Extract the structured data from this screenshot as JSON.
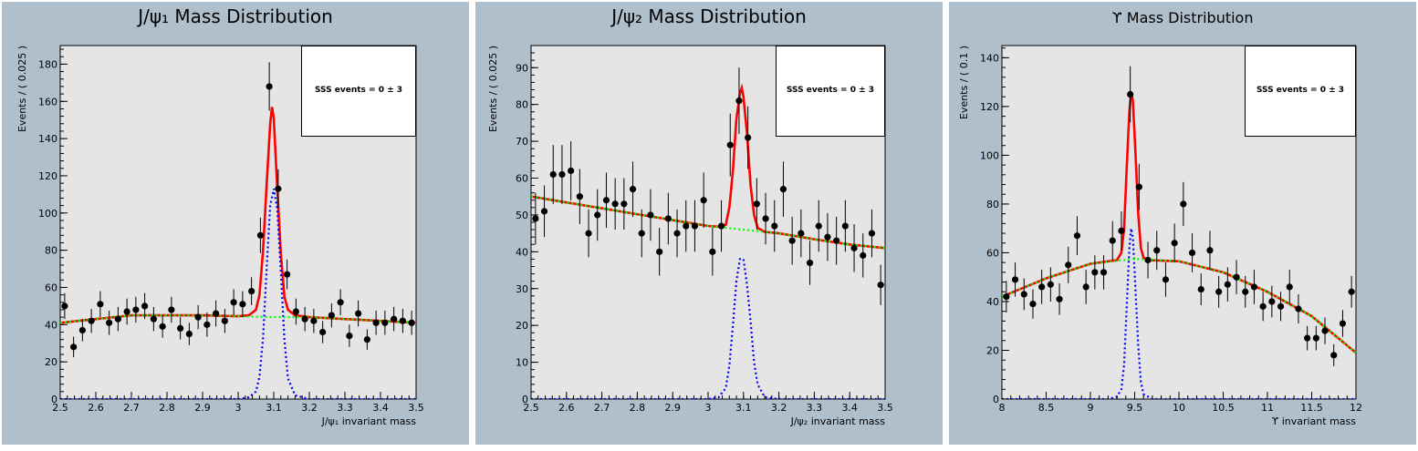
{
  "chart_data": [
    {
      "type": "scatter",
      "title": "J/ψ₁ Mass Distribution",
      "xlabel": "J/ψ₁ invariant mass",
      "ylabel": "Events / ( 0.025 )",
      "xlim": [
        2.5,
        3.5
      ],
      "ylim": [
        0,
        190
      ],
      "xticks": [
        2.5,
        2.6,
        2.7,
        2.8,
        2.9,
        3.0,
        3.1,
        3.2,
        3.3,
        3.4,
        3.5
      ],
      "xtick_labels": [
        "2.5",
        "2.6",
        "2.7",
        "2.8",
        "2.9",
        "3",
        "3.1",
        "3.2",
        "3.3",
        "3.4",
        "3.5"
      ],
      "yticks": [
        0,
        20,
        40,
        60,
        80,
        100,
        120,
        140,
        160,
        180
      ],
      "ytick_labels": [
        "0",
        "20",
        "40",
        "60",
        "80",
        "100",
        "120",
        "140",
        "160",
        "180"
      ],
      "stat_text": "SSS events = 0 ± 3",
      "grid": false,
      "series": [
        {
          "style": "points",
          "x": [
            2.5125,
            2.5375,
            2.5625,
            2.5875,
            2.6125,
            2.6375,
            2.6625,
            2.6875,
            2.7125,
            2.7375,
            2.7625,
            2.7875,
            2.8125,
            2.8375,
            2.8625,
            2.8875,
            2.9125,
            2.9375,
            2.9625,
            2.9875,
            3.0125,
            3.0375,
            3.0625,
            3.0875,
            3.1125,
            3.1375,
            3.1625,
            3.1875,
            3.2125,
            3.2375,
            3.2625,
            3.2875,
            3.3125,
            3.3375,
            3.3625,
            3.3875,
            3.4125,
            3.4375,
            3.4625,
            3.4875
          ],
          "y": [
            50,
            28,
            37,
            42,
            51,
            41,
            43,
            47,
            48,
            50,
            43,
            39,
            48,
            38,
            35,
            44,
            40,
            46,
            42,
            52,
            51,
            58,
            88,
            168,
            113,
            67,
            47,
            43,
            42,
            36,
            45,
            52,
            34,
            46,
            32,
            41,
            41,
            43,
            42,
            41
          ],
          "errors": [
            7,
            5.5,
            6,
            6.5,
            7,
            6.5,
            6.5,
            7,
            7,
            7,
            6.5,
            6,
            7,
            6,
            6,
            6.5,
            6.5,
            7,
            6.5,
            7,
            7,
            7.5,
            9.5,
            13,
            10.5,
            8,
            7,
            6.5,
            6.5,
            6,
            6.5,
            7,
            6,
            7,
            5.5,
            6.5,
            6.5,
            6.5,
            6.5,
            6.5
          ]
        },
        {
          "style": "line",
          "color": "#ff0000",
          "x": [
            2.5,
            2.6,
            2.7,
            2.8,
            2.9,
            3.0,
            3.03,
            3.05,
            3.06,
            3.07,
            3.08,
            3.09,
            3.095,
            3.1,
            3.11,
            3.12,
            3.13,
            3.14,
            3.16,
            3.2,
            3.3,
            3.4,
            3.5
          ],
          "y": [
            41,
            43,
            45,
            45,
            45,
            44.5,
            45,
            48,
            56,
            80,
            115,
            148,
            157,
            151,
            113,
            78,
            55,
            48,
            45,
            44,
            43,
            42,
            41
          ]
        },
        {
          "style": "dotted",
          "color": "#0000ff",
          "x": [
            2.5,
            2.9,
            3.0,
            3.03,
            3.05,
            3.06,
            3.07,
            3.08,
            3.09,
            3.1,
            3.11,
            3.12,
            3.13,
            3.14,
            3.16,
            3.2,
            3.5
          ],
          "y": [
            0,
            0,
            0,
            1,
            4,
            12,
            33,
            70,
            104,
            113,
            102,
            68,
            32,
            11,
            2,
            0,
            0
          ]
        },
        {
          "style": "dotted",
          "color": "#00ff00",
          "x": [
            2.5,
            2.6,
            2.7,
            2.8,
            2.9,
            3.0,
            3.1,
            3.2,
            3.3,
            3.4,
            3.5
          ],
          "y": [
            41,
            43,
            45,
            45,
            45,
            44.5,
            44,
            44,
            43,
            42,
            41
          ]
        }
      ]
    },
    {
      "type": "scatter",
      "title": "J/ψ₂ Mass Distribution",
      "xlabel": "J/ψ₂ invariant mass",
      "ylabel": "Events / ( 0.025 )",
      "xlim": [
        2.5,
        3.5
      ],
      "ylim": [
        0,
        96
      ],
      "xticks": [
        2.5,
        2.6,
        2.7,
        2.8,
        2.9,
        3.0,
        3.1,
        3.2,
        3.3,
        3.4,
        3.5
      ],
      "xtick_labels": [
        "2.5",
        "2.6",
        "2.7",
        "2.8",
        "2.9",
        "3",
        "3.1",
        "3.2",
        "3.3",
        "3.4",
        "3.5"
      ],
      "yticks": [
        0,
        10,
        20,
        30,
        40,
        50,
        60,
        70,
        80,
        90
      ],
      "ytick_labels": [
        "0",
        "10",
        "20",
        "30",
        "40",
        "50",
        "60",
        "70",
        "80",
        "90"
      ],
      "stat_text": "SSS events = 0 ± 3",
      "grid": false,
      "series": [
        {
          "style": "points",
          "x": [
            2.5125,
            2.5375,
            2.5625,
            2.5875,
            2.6125,
            2.6375,
            2.6625,
            2.6875,
            2.7125,
            2.7375,
            2.7625,
            2.7875,
            2.8125,
            2.8375,
            2.8625,
            2.8875,
            2.9125,
            2.9375,
            2.9625,
            2.9875,
            3.0125,
            3.0375,
            3.0625,
            3.0875,
            3.1125,
            3.1375,
            3.1625,
            3.1875,
            3.2125,
            3.2375,
            3.2625,
            3.2875,
            3.3125,
            3.3375,
            3.3625,
            3.3875,
            3.4125,
            3.4375,
            3.4625,
            3.4875
          ],
          "y": [
            49,
            51,
            61,
            61,
            62,
            55,
            45,
            50,
            54,
            53,
            53,
            57,
            45,
            50,
            40,
            49,
            45,
            47,
            47,
            54,
            40,
            47,
            69,
            81,
            71,
            53,
            49,
            47,
            57,
            43,
            45,
            37,
            47,
            44,
            43,
            47,
            41,
            39,
            45,
            31
          ],
          "errors": [
            7,
            7,
            8,
            8,
            8,
            7.5,
            6.5,
            7,
            7.5,
            7,
            7,
            7.5,
            6.5,
            7,
            6.5,
            7,
            6.5,
            7,
            7,
            7.5,
            6.5,
            7,
            8.5,
            9,
            8.5,
            7,
            7,
            7,
            7.5,
            6.5,
            6.5,
            6,
            7,
            6.5,
            6.5,
            7,
            6.5,
            6,
            6.5,
            5.5
          ]
        },
        {
          "style": "line",
          "color": "#ff0000",
          "x": [
            2.5,
            2.6,
            2.7,
            2.8,
            2.9,
            3.0,
            3.03,
            3.05,
            3.06,
            3.07,
            3.08,
            3.09,
            3.095,
            3.1,
            3.11,
            3.12,
            3.13,
            3.14,
            3.16,
            3.2,
            3.3,
            3.4,
            3.5
          ],
          "y": [
            55,
            53.4,
            51.8,
            50.2,
            48.6,
            47,
            46.8,
            47.3,
            52,
            62,
            76,
            83,
            84.5,
            82,
            72,
            58,
            50,
            46.5,
            45.4,
            45,
            43.4,
            42,
            41
          ]
        },
        {
          "style": "dotted",
          "color": "#0000ff",
          "x": [
            2.5,
            2.9,
            3.0,
            3.03,
            3.05,
            3.06,
            3.07,
            3.08,
            3.09,
            3.1,
            3.11,
            3.12,
            3.13,
            3.14,
            3.16,
            3.2,
            3.5
          ],
          "y": [
            0,
            0,
            0,
            0.5,
            3,
            9,
            20,
            32,
            38,
            38,
            31,
            21,
            10,
            4,
            0.5,
            0,
            0
          ]
        },
        {
          "style": "dotted",
          "color": "#00ff00",
          "x": [
            2.5,
            2.6,
            2.7,
            2.8,
            2.9,
            3.0,
            3.1,
            3.2,
            3.3,
            3.4,
            3.5
          ],
          "y": [
            55,
            53.4,
            51.8,
            50.2,
            48.6,
            47,
            46,
            45,
            43.4,
            42,
            41
          ]
        }
      ]
    },
    {
      "type": "scatter",
      "title": "ϒ Mass Distribution",
      "xlabel": "ϒ invariant mass",
      "ylabel": "Events / ( 0.1 )",
      "xlim": [
        8,
        12
      ],
      "ylim": [
        0,
        145
      ],
      "xticks": [
        8,
        8.5,
        9,
        9.5,
        10,
        10.5,
        11,
        11.5,
        12
      ],
      "xtick_labels": [
        "8",
        "8.5",
        "9",
        "9.5",
        "10",
        "10.5",
        "11",
        "11.5",
        "12"
      ],
      "yticks": [
        0,
        20,
        40,
        60,
        80,
        100,
        120,
        140
      ],
      "ytick_labels": [
        "0",
        "20",
        "40",
        "60",
        "80",
        "100",
        "120",
        "140"
      ],
      "stat_text": "SSS events = 0 ± 3",
      "grid": false,
      "series": [
        {
          "style": "points",
          "x": [
            8.05,
            8.15,
            8.25,
            8.35,
            8.45,
            8.55,
            8.65,
            8.75,
            8.85,
            8.95,
            9.05,
            9.15,
            9.25,
            9.35,
            9.45,
            9.55,
            9.65,
            9.75,
            9.85,
            9.95,
            10.05,
            10.15,
            10.25,
            10.35,
            10.45,
            10.55,
            10.65,
            10.75,
            10.85,
            10.95,
            11.05,
            11.15,
            11.25,
            11.35,
            11.45,
            11.55,
            11.65,
            11.75,
            11.85,
            11.95
          ],
          "y": [
            42,
            49,
            43,
            39,
            46,
            47,
            41,
            55,
            67,
            46,
            52,
            52,
            65,
            69,
            125,
            87,
            57,
            61,
            49,
            64,
            80,
            60,
            45,
            61,
            44,
            47,
            50,
            44,
            46,
            38,
            40,
            38,
            46,
            37,
            25,
            25,
            28,
            18,
            31,
            44
          ],
          "errors": [
            6.5,
            7,
            6.5,
            6,
            7,
            7,
            6.5,
            7.5,
            8,
            7,
            7,
            7,
            8,
            8,
            11.5,
            9.5,
            7.5,
            8,
            7,
            8,
            9,
            8,
            6.5,
            8,
            6.5,
            7,
            7,
            6.5,
            7,
            6,
            6.5,
            6,
            7,
            6,
            5,
            5,
            5.5,
            4.5,
            5.5,
            6.5
          ]
        },
        {
          "style": "line",
          "color": "#ff0000",
          "x": [
            8.0,
            8.5,
            9.0,
            9.3,
            9.35,
            9.38,
            9.41,
            9.44,
            9.46,
            9.48,
            9.51,
            9.54,
            9.57,
            9.6,
            9.65,
            10.0,
            10.5,
            11.0,
            11.5,
            12.0
          ],
          "y": [
            42,
            49.5,
            55.5,
            57,
            60,
            70,
            95,
            118,
            126,
            122,
            100,
            76,
            62,
            58,
            57,
            56.5,
            52,
            44,
            34,
            19
          ]
        },
        {
          "style": "dotted",
          "color": "#0000ff",
          "x": [
            8.0,
            9.2,
            9.3,
            9.35,
            9.38,
            9.41,
            9.44,
            9.46,
            9.48,
            9.51,
            9.54,
            9.57,
            9.6,
            9.7,
            12.0
          ],
          "y": [
            0,
            0,
            1,
            4,
            14,
            38,
            62,
            70,
            66,
            44,
            22,
            7,
            2,
            0,
            0
          ]
        },
        {
          "style": "dotted",
          "color": "#00ff00",
          "x": [
            8.0,
            8.5,
            9.0,
            9.5,
            10.0,
            10.5,
            11.0,
            11.5,
            12.0
          ],
          "y": [
            42,
            49.5,
            55.5,
            57.5,
            56.5,
            52,
            44,
            34,
            19
          ]
        }
      ]
    }
  ]
}
